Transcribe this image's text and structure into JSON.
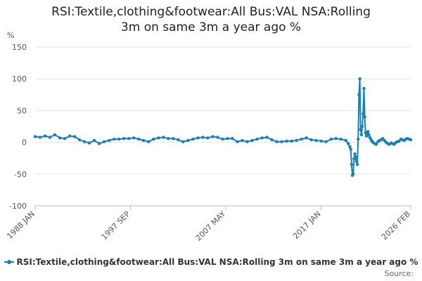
{
  "chart_data": {
    "type": "line",
    "title": "RSI:Textile,clothing&footwear:All Bus:VAL NSA:Rolling 3m on same 3m a year ago %",
    "ylabel": "%",
    "ylim": [
      -100,
      150
    ],
    "yticks": [
      150,
      100,
      50,
      0,
      -50,
      -100
    ],
    "xlim": [
      "1988-01",
      "2026-02"
    ],
    "xticks": [
      {
        "label": "1988 JAN",
        "date": "1988-01"
      },
      {
        "label": "1997 SEP",
        "date": "1997-09"
      },
      {
        "label": "2007 MAY",
        "date": "2007-05"
      },
      {
        "label": "2017 JAN",
        "date": "2017-01"
      },
      {
        "label": "2026 FEB",
        "date": "2026-02"
      }
    ],
    "grid": "horizontal",
    "legend_position": "bottom",
    "series": [
      {
        "name": "RSI:Textile,clothing&footwear:All Bus:VAL NSA:Rolling 3m on same 3m a year ago %",
        "color": "#1a7fb5",
        "x": [
          "1988-01",
          "1988-07",
          "1989-01",
          "1989-07",
          "1990-01",
          "1990-07",
          "1991-01",
          "1991-07",
          "1992-01",
          "1992-07",
          "1993-01",
          "1993-07",
          "1994-01",
          "1994-07",
          "1995-01",
          "1995-07",
          "1996-01",
          "1996-07",
          "1997-01",
          "1997-07",
          "1998-01",
          "1998-07",
          "1999-01",
          "1999-07",
          "2000-01",
          "2000-07",
          "2001-01",
          "2001-07",
          "2002-01",
          "2002-07",
          "2003-01",
          "2003-07",
          "2004-01",
          "2004-07",
          "2005-01",
          "2005-07",
          "2006-01",
          "2006-07",
          "2007-01",
          "2007-07",
          "2008-01",
          "2008-07",
          "2009-01",
          "2009-07",
          "2010-01",
          "2010-07",
          "2011-01",
          "2011-07",
          "2012-01",
          "2012-07",
          "2013-01",
          "2013-07",
          "2014-01",
          "2014-07",
          "2015-01",
          "2015-07",
          "2016-01",
          "2016-07",
          "2017-01",
          "2017-07",
          "2018-01",
          "2018-07",
          "2019-01",
          "2019-07",
          "2019-10",
          "2019-12",
          "2020-01",
          "2020-02",
          "2020-03",
          "2020-04",
          "2020-05",
          "2020-06",
          "2020-07",
          "2020-08",
          "2020-09",
          "2020-10",
          "2020-11",
          "2020-12",
          "2021-01",
          "2021-02",
          "2021-03",
          "2021-04",
          "2021-05",
          "2021-06",
          "2021-07",
          "2021-08",
          "2021-09",
          "2021-10",
          "2021-11",
          "2021-12",
          "2022-01",
          "2022-02",
          "2022-03",
          "2022-04",
          "2022-06",
          "2022-08",
          "2022-10",
          "2022-12",
          "2023-02",
          "2023-04",
          "2023-06",
          "2023-08",
          "2023-10",
          "2023-12",
          "2024-02",
          "2024-04",
          "2024-06",
          "2024-08",
          "2024-10",
          "2024-12",
          "2025-02",
          "2025-04",
          "2025-06",
          "2025-08",
          "2025-10",
          "2025-12",
          "2026-02"
        ],
        "values": [
          9,
          8,
          10,
          8,
          12,
          7,
          6,
          10,
          9,
          4,
          1,
          -1,
          3,
          -2,
          1,
          3,
          5,
          5,
          6,
          6,
          7,
          5,
          3,
          1,
          5,
          7,
          8,
          6,
          6,
          4,
          1,
          3,
          5,
          7,
          8,
          7,
          9,
          8,
          5,
          6,
          6,
          1,
          3,
          1,
          3,
          5,
          7,
          8,
          4,
          1,
          1,
          2,
          2,
          3,
          5,
          7,
          4,
          3,
          2,
          1,
          5,
          6,
          5,
          3,
          -2,
          -7,
          -11,
          -35,
          -52,
          -50,
          -26,
          -18,
          -23,
          -30,
          -35,
          5,
          75,
          100,
          20,
          12,
          25,
          45,
          85,
          40,
          15,
          10,
          14,
          17,
          12,
          8,
          6,
          3,
          2,
          0,
          -2,
          -3,
          1,
          3,
          4,
          6,
          3,
          0,
          -2,
          -3,
          -1,
          -2,
          -3,
          0,
          1,
          2,
          5,
          4,
          3,
          5,
          6,
          5,
          4
        ]
      }
    ]
  },
  "legend": {
    "label": "RSI:Textile,clothing&footwear:All Bus:VAL NSA:Rolling 3m on same 3m a year ago %"
  },
  "source": {
    "label": "Source:"
  }
}
